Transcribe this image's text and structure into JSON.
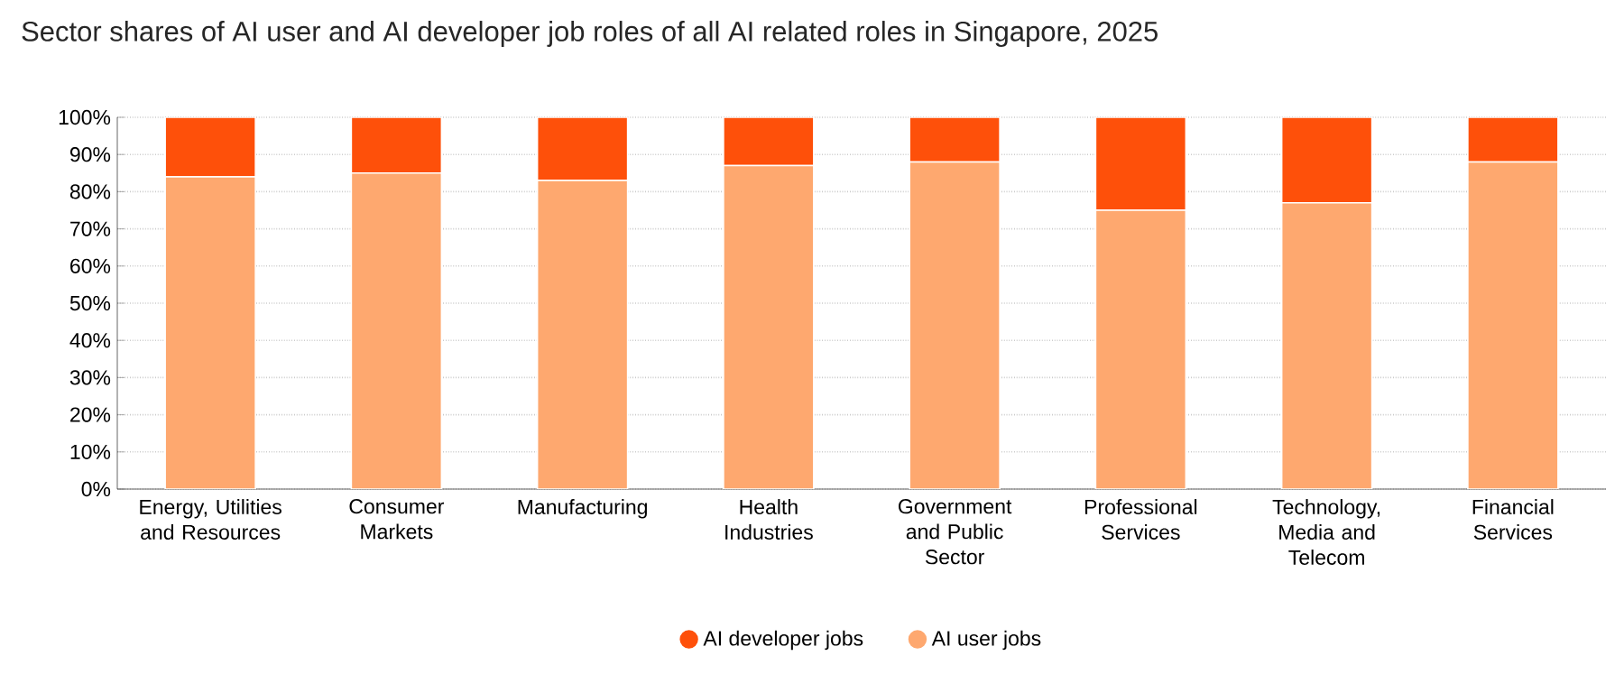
{
  "chart_data": {
    "type": "bar",
    "title": "Sector shares of AI user and AI developer job roles of all AI related roles in Singapore, 2025",
    "categories": [
      "Energy, Utilities and Resources",
      "Consumer Markets",
      "Manufacturing",
      "Health Industries",
      "Government and Public Sector",
      "Professional Services",
      "Technology, Media and Telecom",
      "Financial Services"
    ],
    "series": [
      {
        "name": "AI user jobs",
        "color": "#fea86f",
        "values": [
          84,
          85,
          83,
          87,
          88,
          75,
          77,
          88
        ]
      },
      {
        "name": "AI developer jobs",
        "color": "#fe500a",
        "values": [
          16,
          15,
          17,
          13,
          12,
          25,
          23,
          12
        ]
      }
    ],
    "stacked": true,
    "ylim": [
      0,
      100
    ],
    "yticks": [
      {
        "value": 0,
        "label": "0%"
      },
      {
        "value": 10,
        "label": "10%"
      },
      {
        "value": 20,
        "label": "20%"
      },
      {
        "value": 30,
        "label": "30%"
      },
      {
        "value": 40,
        "label": "40%"
      },
      {
        "value": 50,
        "label": "50%"
      },
      {
        "value": 60,
        "label": "60%"
      },
      {
        "value": 70,
        "label": "70%"
      },
      {
        "value": 80,
        "label": "80%"
      },
      {
        "value": 90,
        "label": "90%"
      },
      {
        "value": 100,
        "label": "100%"
      }
    ],
    "grid": "y",
    "legend": "bottom"
  }
}
